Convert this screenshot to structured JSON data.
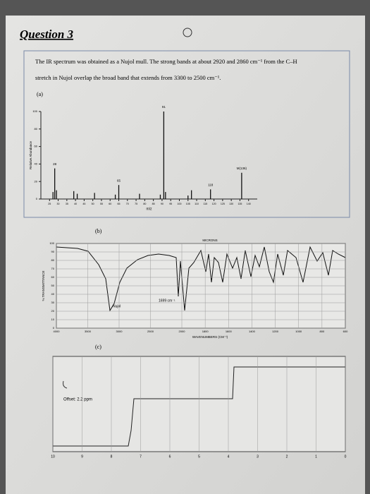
{
  "header": {
    "title": "Question 3"
  },
  "intro": {
    "line1": "The IR spectrum was obtained as a Nujol mull. The strong bands at about 2920 and 2860 cm⁻¹ from the C–H",
    "line2": "stretch in Nujol overlap the broad band that extends from 3300 to 2500 cm⁻¹."
  },
  "panel_a": {
    "label": "(a)",
    "y_label": "Relative Abundance",
    "x_label": "m/z",
    "xlim": [
      20,
      145
    ],
    "ylim": [
      0,
      100
    ],
    "yticks": [
      0,
      20,
      40,
      60,
      80,
      100
    ],
    "xticks": [
      25,
      30,
      35,
      40,
      45,
      50,
      55,
      60,
      65,
      70,
      75,
      80,
      85,
      90,
      95,
      100,
      105,
      110,
      115,
      120,
      125,
      130,
      135,
      140
    ],
    "mz": [
      27,
      28,
      29,
      39,
      41,
      51,
      63,
      65,
      77,
      89,
      91,
      92,
      105,
      107,
      118,
      136
    ],
    "abundance": [
      8,
      35,
      10,
      9,
      6,
      7,
      5,
      16,
      6,
      5,
      100,
      8,
      4,
      10,
      11,
      30
    ],
    "peak_labels": [
      {
        "mz": 28,
        "text": "28"
      },
      {
        "mz": 65,
        "text": "65"
      },
      {
        "mz": 91,
        "text": "91"
      },
      {
        "mz": 118,
        "text": "118"
      },
      {
        "mz": 136,
        "text": "M(136)"
      }
    ]
  },
  "panel_b": {
    "label": "(b)",
    "top_label": "MICRONS",
    "x_label": "WAVENUMBERS (CM⁻¹)",
    "y_label": "% TRANSMITTANCE",
    "annotations": [
      "Nujol",
      "1699 cm⁻¹"
    ],
    "xticks": [
      4000,
      3500,
      3000,
      2500,
      2000,
      1800,
      1600,
      1400,
      1200,
      1000,
      800,
      600
    ],
    "yticks": [
      0,
      10,
      20,
      30,
      40,
      50,
      60,
      70,
      80,
      90,
      100
    ]
  },
  "panel_c": {
    "label": "(c)",
    "offset": "Offset: 2.2 ppm",
    "xticks": [
      10,
      9,
      8,
      7,
      6,
      5,
      4,
      3,
      2,
      1,
      0
    ]
  }
}
